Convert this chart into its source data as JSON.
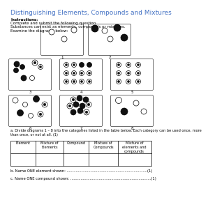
{
  "title": "Distinguishing Elements, Compounds and Mixtures",
  "title_color": "#4472C4",
  "instructions_bold": "Instructions:",
  "instructions_line1": "Complete and submit the following question.",
  "instructions_line2": "Substances can exist as elements, compounds or mixtures.",
  "instructions_line3": "Examine the diagrams below:",
  "background_color": "#ffffff",
  "table_headers": [
    "Element",
    "Mixture of\nElements",
    "Compound",
    "Mixture of\nCompounds",
    "Mixture of\nelements and\ncompounds"
  ],
  "question_b": "b. Name ONE element shown: .......................................................................(1)",
  "question_c": "c. Name ONE compound shown: .......................................................................(1)"
}
